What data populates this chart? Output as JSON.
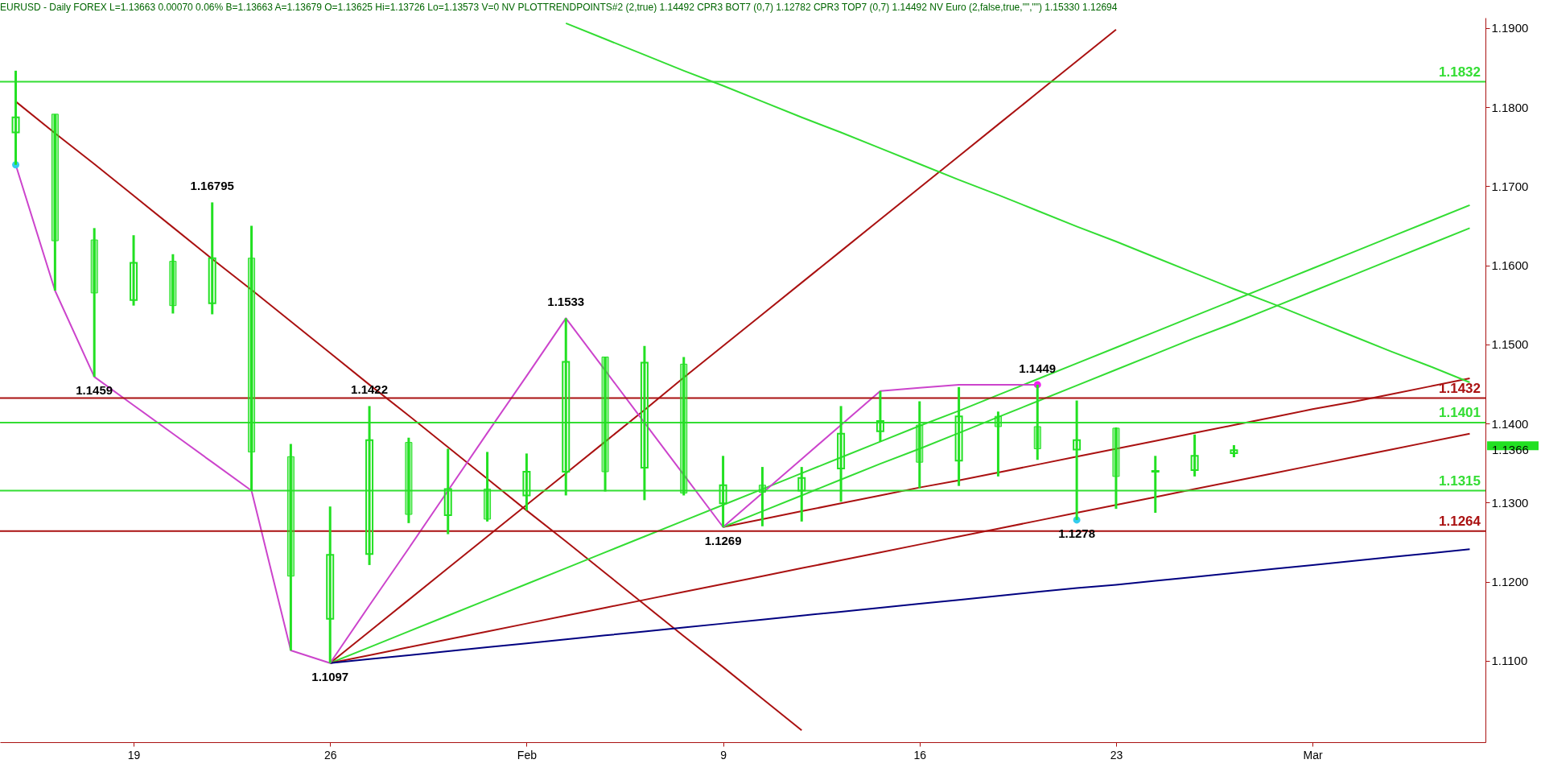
{
  "chart_data": {
    "type": "candlestick",
    "title": "EURUSD - Daily  FOREX L=1.13663 0.00070 0.06%  B=1.13663 A=1.13679 O=1.13625 Hi=1.13726 Lo=1.13573 V=0  NV PLOTTRENDPOINTS#2 (2,true) 1.14492  CPR3 BOT7 (0,7) 1.12782  CPR3 TOP7 (0,7) 1.14492  NV Euro (2,false,true,\"\",\"\") 1.15330 1.12694",
    "categories": [
      null,
      null,
      null,
      "19",
      null,
      null,
      null,
      null,
      "26",
      null,
      null,
      null,
      null,
      "Feb",
      null,
      null,
      null,
      null,
      "9",
      null,
      null,
      null,
      null,
      "16",
      null,
      null,
      null,
      null,
      "23",
      null,
      null,
      null,
      null,
      "Mar",
      null,
      null,
      null,
      null
    ],
    "color": "#22e022",
    "ohlc": [
      [
        1.1768,
        1.1846,
        1.1727,
        1.1787
      ],
      [
        1.1791,
        1.1791,
        1.1568,
        1.1631
      ],
      [
        1.1632,
        1.1647,
        1.1459,
        1.1565
      ],
      [
        1.1556,
        1.1638,
        1.1549,
        1.1603
      ],
      [
        1.1605,
        1.1614,
        1.1539,
        1.1549
      ],
      [
        1.1552,
        1.16795,
        1.1538,
        1.1609
      ],
      [
        1.1609,
        1.165,
        1.1315,
        1.1364
      ],
      [
        1.1358,
        1.1374,
        1.1113,
        1.1207
      ],
      [
        1.1153,
        1.1295,
        1.1097,
        1.1234
      ],
      [
        1.1235,
        1.1422,
        1.1221,
        1.1379
      ],
      [
        1.1376,
        1.1382,
        1.1274,
        1.1285
      ],
      [
        1.1284,
        1.1368,
        1.126,
        1.1317
      ],
      [
        1.1317,
        1.1364,
        1.1276,
        1.1279
      ],
      [
        1.1309,
        1.1362,
        1.129,
        1.1339
      ],
      [
        1.1339,
        1.1533,
        1.1309,
        1.1478
      ],
      [
        1.1484,
        1.1484,
        1.1314,
        1.1339
      ],
      [
        1.1344,
        1.1498,
        1.1303,
        1.1477
      ],
      [
        1.1475,
        1.1484,
        1.1309,
        1.1312
      ],
      [
        1.1299,
        1.1359,
        1.1269,
        1.1322
      ],
      [
        1.1322,
        1.1345,
        1.127,
        1.1313
      ],
      [
        1.1315,
        1.1345,
        1.1276,
        1.1331
      ],
      [
        1.1343,
        1.1422,
        1.1301,
        1.1387
      ],
      [
        1.139,
        1.1441,
        1.1377,
        1.1403
      ],
      [
        1.1398,
        1.1428,
        1.1318,
        1.1351
      ],
      [
        1.1353,
        1.1446,
        1.1321,
        1.1409
      ],
      [
        1.1409,
        1.1415,
        1.1333,
        1.1396
      ],
      [
        1.1396,
        1.1449,
        1.1354,
        1.1368
      ],
      [
        1.1367,
        1.1429,
        1.1278,
        1.1379
      ],
      [
        1.1394,
        1.1395,
        1.1292,
        1.1333
      ],
      [
        1.1339,
        1.1359,
        1.1287,
        1.134
      ],
      [
        1.1341,
        1.1386,
        1.1333,
        1.1359
      ],
      [
        1.13625,
        1.13726,
        1.13573,
        1.13663
      ],
      null,
      null,
      null,
      null,
      null,
      null
    ],
    "value_labels": [
      null,
      null,
      "1.1459",
      null,
      null,
      "1.16795",
      null,
      null,
      "1.1097",
      "1.1422",
      null,
      null,
      null,
      null,
      "1.1533",
      null,
      null,
      null,
      "1.1269",
      null,
      null,
      null,
      null,
      null,
      null,
      null,
      "1.1449",
      "1.1278",
      null,
      null,
      null,
      null,
      null,
      null,
      null,
      null,
      null,
      null
    ],
    "series": [
      {
        "type": "line",
        "color": "#aa1111",
        "values": [
          1.1807,
          1.1767,
          1.1728,
          1.1688,
          1.1648,
          1.1608,
          1.1569,
          1.1529,
          1.1489,
          1.1449,
          1.141,
          1.137,
          1.133,
          1.129,
          1.1251,
          1.1211,
          1.1171,
          1.1131,
          1.1092,
          1.1052,
          1.1012,
          null,
          null,
          null,
          null,
          null,
          null,
          null,
          null,
          null,
          null,
          null,
          null,
          null,
          null,
          null,
          null,
          null
        ]
      },
      {
        "type": "line",
        "color": "#aa1111",
        "values": [
          null,
          null,
          null,
          null,
          null,
          null,
          null,
          null,
          1.1097,
          1.1137,
          1.1177,
          1.1217,
          1.1257,
          1.1297,
          1.1337,
          1.1377,
          1.1417,
          1.1458,
          1.1498,
          1.1538,
          1.1578,
          1.1618,
          1.1658,
          1.1698,
          1.1738,
          1.1778,
          1.1818,
          1.1858,
          1.1898,
          null,
          null,
          null,
          null,
          null,
          null,
          null,
          null,
          null
        ]
      },
      {
        "type": "line",
        "color": "#33dd33",
        "values": [
          null,
          null,
          null,
          null,
          null,
          null,
          null,
          null,
          1.1097,
          1.1117,
          1.1137,
          1.1157,
          1.1177,
          1.1197,
          1.1217,
          1.1237,
          1.1257,
          1.1277,
          1.1297,
          1.1317,
          1.1337,
          1.1357,
          1.1377,
          1.1397,
          1.1416,
          1.1436,
          1.1456,
          1.1476,
          1.1496,
          1.1516,
          1.1536,
          1.1556,
          1.1576,
          1.1596,
          1.1616,
          1.1636,
          1.1656,
          1.1676
        ]
      },
      {
        "type": "line",
        "color": "#aa1111",
        "values": [
          null,
          null,
          null,
          null,
          null,
          null,
          null,
          null,
          1.1097,
          1.1107,
          1.1117,
          1.1127,
          1.1137,
          1.1147,
          1.1157,
          1.1167,
          1.1177,
          1.1187,
          1.1197,
          1.1207,
          1.1217,
          1.1227,
          1.1237,
          1.1247,
          1.1257,
          1.1267,
          1.1277,
          1.1287,
          1.1297,
          1.1307,
          1.1317,
          1.1327,
          1.1337,
          1.1347,
          1.1357,
          1.1367,
          1.1377,
          1.1387
        ]
      },
      {
        "type": "line",
        "color": "#aa1111",
        "values": [
          null,
          null,
          null,
          null,
          null,
          null,
          null,
          null,
          null,
          null,
          null,
          null,
          null,
          null,
          null,
          null,
          null,
          null,
          1.1269,
          1.1279,
          1.1289,
          1.1299,
          1.1309,
          1.1319,
          1.1328,
          1.1338,
          1.1348,
          1.1358,
          1.1368,
          1.1378,
          1.1388,
          1.1398,
          1.1408,
          1.1418,
          1.1427,
          1.1437,
          1.1447,
          1.1457
        ]
      },
      {
        "type": "line",
        "color": "#33dd33",
        "values": [
          null,
          null,
          null,
          null,
          null,
          null,
          null,
          null,
          null,
          null,
          null,
          null,
          null,
          null,
          null,
          null,
          null,
          null,
          1.1269,
          1.1289,
          1.1309,
          1.1329,
          1.1349,
          1.1368,
          1.1388,
          1.1408,
          1.1428,
          1.1448,
          1.1468,
          1.1488,
          1.1508,
          1.1527,
          1.1547,
          1.1567,
          1.1587,
          1.1607,
          1.1627,
          1.1647
        ]
      },
      {
        "type": "line",
        "color": "#000080",
        "values": [
          null,
          null,
          null,
          null,
          null,
          null,
          null,
          null,
          1.1097,
          1.1102,
          1.1107,
          1.1112,
          1.1117,
          1.1122,
          1.1127,
          1.1132,
          1.1137,
          1.1142,
          1.1147,
          1.1152,
          1.1157,
          1.1162,
          1.1167,
          1.1172,
          1.1177,
          1.1182,
          1.1187,
          1.1192,
          1.1196,
          1.1201,
          1.1206,
          1.1211,
          1.1216,
          1.1221,
          1.1226,
          1.1231,
          1.1236,
          1.1241
        ]
      },
      {
        "type": "line",
        "color": "#33dd33",
        "values": [
          null,
          null,
          null,
          null,
          null,
          null,
          null,
          null,
          null,
          null,
          null,
          null,
          null,
          null,
          1.1906,
          1.1886,
          1.1866,
          1.1846,
          1.1827,
          1.1807,
          1.1787,
          1.1768,
          1.1748,
          1.1728,
          1.1708,
          1.1689,
          1.1669,
          1.1649,
          1.163,
          1.161,
          1.159,
          1.157,
          1.1551,
          1.1531,
          1.1511,
          1.1491,
          1.1472,
          1.1452
        ]
      },
      {
        "type": "line",
        "color": "#cc44cc",
        "values": [
          1.1727,
          1.1568,
          1.1459,
          1.1423,
          1.1387,
          1.1351,
          1.1315,
          1.1113,
          1.1097,
          1.117,
          1.1242,
          1.1315,
          1.1388,
          1.146,
          1.1533,
          1.1467,
          1.1401,
          1.1335,
          1.1269,
          1.1312,
          1.1355,
          1.1398,
          1.1441,
          1.1445,
          1.1449,
          1.1449,
          1.1449,
          null,
          null,
          null,
          null,
          null,
          null,
          null,
          null,
          null,
          null,
          null
        ]
      },
      {
        "type": "scatter",
        "color": "#33ccee",
        "values": [
          1.1727,
          null,
          null,
          null,
          null,
          null,
          null,
          null,
          null,
          null,
          null,
          null,
          null,
          null,
          null,
          null,
          null,
          null,
          null,
          null,
          null,
          null,
          null,
          null,
          null,
          null,
          null,
          1.1278,
          null,
          null,
          null,
          null,
          null,
          null,
          null,
          null,
          null,
          null
        ]
      },
      {
        "type": "scatter",
        "color": "#ee22ee",
        "values": [
          null,
          null,
          null,
          null,
          null,
          null,
          null,
          null,
          null,
          null,
          null,
          null,
          null,
          null,
          null,
          null,
          null,
          null,
          null,
          null,
          null,
          null,
          null,
          null,
          null,
          null,
          1.1449,
          null,
          null,
          null,
          null,
          null,
          null,
          null,
          null,
          null,
          null,
          null
        ]
      }
    ],
    "ref_lines": [
      {
        "axis": "y",
        "value": 1.1832,
        "label": "1.1832",
        "color": "#33dd33"
      },
      {
        "axis": "y",
        "value": 1.1432,
        "label": "1.1432",
        "color": "#aa1111"
      },
      {
        "axis": "y",
        "value": 1.1401,
        "label": "1.1401",
        "color": "#33dd33"
      },
      {
        "axis": "y",
        "value": 1.1315,
        "label": "1.1315",
        "color": "#33dd33"
      },
      {
        "axis": "y",
        "value": 1.1264,
        "label": "1.1264",
        "color": "#aa1111"
      }
    ],
    "annotations": [
      "1.1366"
    ],
    "ylim": [
      1.0997,
      1.1913
    ],
    "yticks": [
      {
        "value": 1.11,
        "label": "1.1100"
      },
      {
        "value": 1.12,
        "label": "1.1200"
      },
      {
        "value": 1.13,
        "label": "1.1300"
      },
      {
        "value": 1.14,
        "label": "1.1400"
      },
      {
        "value": 1.15,
        "label": "1.1500"
      },
      {
        "value": 1.16,
        "label": "1.1600"
      },
      {
        "value": 1.17,
        "label": "1.1700"
      },
      {
        "value": 1.18,
        "label": "1.1800"
      },
      {
        "value": 1.19,
        "label": "1.1900"
      }
    ]
  }
}
